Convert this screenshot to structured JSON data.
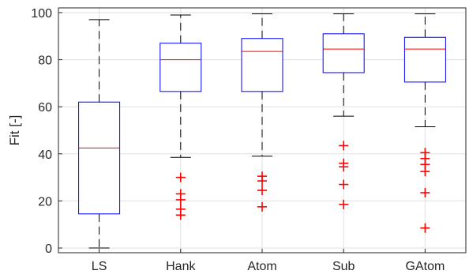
{
  "chart_data": {
    "type": "boxplot",
    "title": "",
    "xlabel": "",
    "ylabel": "Fit [-]",
    "ylim": [
      -2,
      102
    ],
    "yticks": [
      0,
      20,
      40,
      60,
      80,
      100
    ],
    "ytick_labels": [
      "0",
      "20",
      "40",
      "60",
      "80",
      "100"
    ],
    "grid": true,
    "categories": [
      "LS",
      "Hank",
      "Atom",
      "Sub",
      "GAtom"
    ],
    "boxes": [
      {
        "whisker_low": 0,
        "q1": 14.5,
        "median": 42.5,
        "q3": 62,
        "whisker_high": 97,
        "outliers": []
      },
      {
        "whisker_low": 38.5,
        "q1": 66.5,
        "median": 80,
        "q3": 87,
        "whisker_high": 99,
        "outliers": [
          30,
          23,
          20.5,
          16.5,
          14
        ]
      },
      {
        "whisker_low": 39,
        "q1": 66.5,
        "median": 83.5,
        "q3": 89,
        "whisker_high": 99.5,
        "outliers": [
          30.5,
          28.5,
          24.5,
          17.5
        ]
      },
      {
        "whisker_low": 56,
        "q1": 74.5,
        "median": 84.5,
        "q3": 91,
        "whisker_high": 99.5,
        "outliers": [
          43.5,
          36,
          34.5,
          27,
          18.5
        ]
      },
      {
        "whisker_low": 51.5,
        "q1": 70.5,
        "median": 84.5,
        "q3": 89.5,
        "whisker_high": 99.5,
        "outliers": [
          40.5,
          38,
          35.5,
          32.5,
          23.5,
          8.5
        ]
      }
    ],
    "colors": {
      "box": "#0000ff",
      "median": "#ff0000",
      "whisker": "#000000",
      "outlier": "#ff0000",
      "grid": "#e0e0e0",
      "axis": "#262626"
    }
  }
}
